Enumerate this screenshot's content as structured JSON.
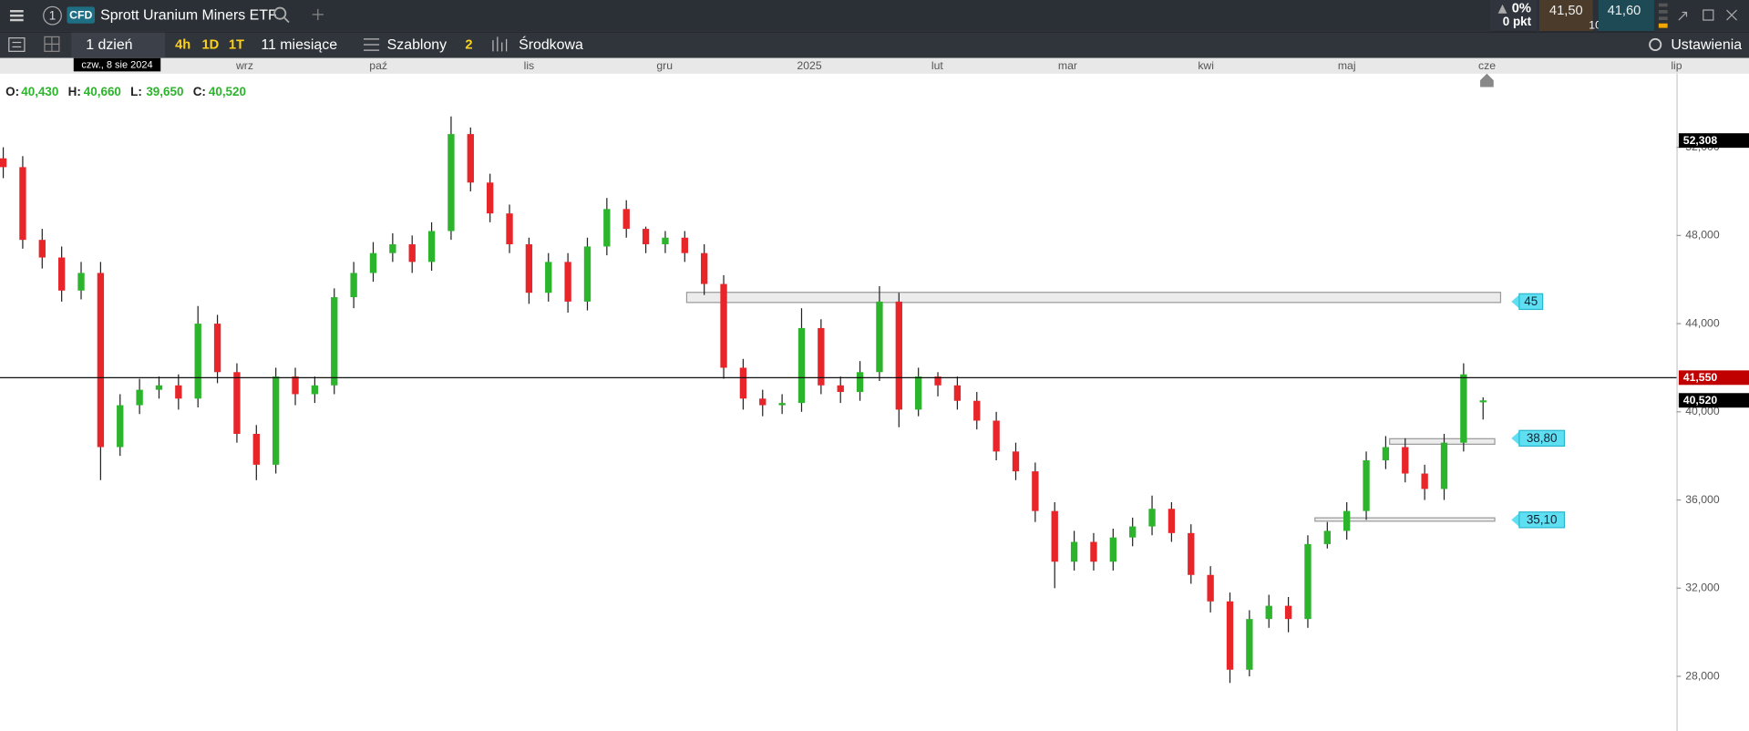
{
  "header": {
    "menu_number": "1",
    "badge": "CFD",
    "instrument": "Sprott Uranium Miners ETF",
    "change_pct": "0%",
    "change_pts": "0 pkt",
    "bid": "41,50",
    "spread": "10",
    "ask": "41,60"
  },
  "toolbar": {
    "interval": "1 dzień",
    "quick_intervals": [
      "4h",
      "1D",
      "1T"
    ],
    "range": "11 miesiące",
    "templates": "Szablony",
    "template_count": "2",
    "price_type": "Środkowa",
    "settings": "Ustawienia"
  },
  "chart_data": {
    "type": "candlestick",
    "crosshair_date": "czw., 8 sie 2024",
    "ohlc_legend": [
      {
        "label": "O:",
        "value": "40,430"
      },
      {
        "label": "H:",
        "value": "40,660"
      },
      {
        "label": "L:",
        "value": "39,650"
      },
      {
        "label": "C:",
        "value": "40,520"
      }
    ],
    "up_color": "#2cb52c",
    "down_color": "#e8262a",
    "xlim": [
      -0.5,
      257.8
    ],
    "ylim": [
      25.52,
      55.29
    ],
    "xticks": [
      {
        "value": 37.2,
        "label": "wrz"
      },
      {
        "value": 57.8,
        "label": "paź"
      },
      {
        "value": 81,
        "label": "lis"
      },
      {
        "value": 101.9,
        "label": "gru"
      },
      {
        "value": 124.2,
        "label": "2025"
      },
      {
        "value": 143.9,
        "label": "lut"
      },
      {
        "value": 164,
        "label": "mar"
      },
      {
        "value": 185.3,
        "label": "kwi"
      },
      {
        "value": 207,
        "label": "maj"
      },
      {
        "value": 228.6,
        "label": "cze"
      },
      {
        "value": 257.8,
        "label": "lip"
      }
    ],
    "yticks": [
      {
        "value": 28,
        "label": "28,000"
      },
      {
        "value": 32,
        "label": "32,000"
      },
      {
        "value": 36,
        "label": "36,000"
      },
      {
        "value": 40,
        "label": "40,000"
      },
      {
        "value": 44,
        "label": "44,000"
      },
      {
        "value": 48,
        "label": "48,000"
      },
      {
        "value": 52,
        "label": "52,000"
      }
    ],
    "x": [
      0,
      3,
      6,
      9,
      12,
      15,
      18,
      21,
      24,
      27,
      30,
      33,
      36,
      39,
      42,
      45,
      48,
      51,
      54,
      57,
      60,
      63,
      66,
      69,
      72,
      75,
      78,
      81,
      84,
      87,
      90,
      93,
      96,
      99,
      102,
      105,
      108,
      111,
      114,
      117,
      120,
      123,
      126,
      129,
      132,
      135,
      138,
      141,
      144,
      147,
      150,
      153,
      156,
      159,
      162,
      165,
      168,
      171,
      174,
      177,
      180,
      183,
      186,
      189,
      192,
      195,
      198,
      201,
      204,
      207,
      210,
      213,
      216,
      219,
      222,
      225,
      228
    ],
    "open": [
      51.5,
      51.1,
      47.8,
      47.0,
      45.5,
      46.3,
      38.4,
      40.3,
      41.0,
      41.2,
      40.6,
      44.0,
      41.8,
      39.0,
      37.6,
      41.6,
      40.8,
      41.2,
      45.2,
      46.3,
      47.2,
      47.6,
      46.8,
      48.2,
      52.6,
      50.4,
      49.0,
      47.6,
      45.4,
      46.8,
      45.0,
      47.5,
      49.2,
      48.3,
      47.6,
      47.9,
      47.2,
      45.8,
      42.0,
      40.6,
      40.3,
      40.4,
      43.8,
      41.2,
      40.9,
      41.8,
      45.0,
      40.1,
      41.6,
      41.2,
      40.5,
      39.6,
      38.2,
      37.3,
      35.5,
      33.2,
      34.1,
      33.2,
      34.3,
      34.8,
      35.6,
      34.5,
      32.6,
      31.4,
      28.3,
      30.6,
      31.2,
      30.6,
      34.0,
      34.6,
      35.5,
      37.8,
      38.4,
      37.2,
      36.5,
      38.6,
      40.43
    ],
    "high": [
      52.0,
      51.6,
      48.3,
      47.5,
      46.8,
      46.8,
      40.8,
      41.5,
      41.6,
      41.7,
      44.8,
      44.4,
      42.2,
      39.4,
      42.0,
      42.0,
      41.6,
      45.6,
      46.8,
      47.7,
      48.1,
      48.0,
      48.6,
      53.4,
      52.9,
      50.8,
      49.4,
      47.9,
      47.2,
      47.2,
      47.9,
      49.7,
      49.6,
      48.4,
      48.2,
      48.2,
      47.6,
      46.2,
      42.4,
      41.0,
      40.8,
      44.7,
      44.2,
      41.6,
      42.3,
      45.7,
      45.4,
      42.0,
      41.8,
      41.6,
      40.9,
      40.0,
      38.6,
      37.7,
      35.9,
      34.6,
      34.5,
      34.7,
      35.2,
      36.2,
      35.9,
      34.9,
      33.0,
      31.8,
      31.0,
      31.7,
      31.6,
      34.4,
      35.0,
      35.9,
      38.2,
      38.9,
      38.8,
      37.6,
      39.0,
      42.2,
      40.66
    ],
    "low": [
      50.6,
      47.4,
      46.5,
      45.0,
      45.1,
      36.9,
      38.0,
      39.9,
      40.6,
      40.1,
      40.2,
      41.3,
      38.6,
      36.9,
      37.2,
      40.3,
      40.4,
      40.8,
      44.7,
      45.9,
      46.8,
      46.3,
      46.4,
      47.8,
      50.0,
      48.6,
      47.2,
      44.9,
      45.0,
      44.5,
      44.6,
      47.1,
      47.9,
      47.2,
      47.2,
      46.8,
      45.3,
      41.5,
      40.1,
      39.8,
      39.9,
      40.0,
      40.8,
      40.4,
      40.5,
      41.4,
      39.3,
      39.8,
      40.7,
      40.1,
      39.2,
      37.8,
      36.9,
      35.0,
      32.0,
      32.8,
      32.8,
      32.8,
      33.9,
      34.4,
      34.1,
      32.2,
      30.9,
      27.7,
      28.0,
      30.2,
      30.0,
      30.2,
      33.8,
      34.2,
      35.1,
      37.4,
      36.8,
      36.0,
      36.0,
      38.2,
      39.65
    ],
    "close": [
      51.1,
      47.8,
      47.0,
      45.5,
      46.3,
      38.4,
      40.3,
      41.0,
      41.2,
      40.6,
      44.0,
      41.8,
      39.0,
      37.6,
      41.6,
      40.8,
      41.2,
      45.2,
      46.3,
      47.2,
      47.6,
      46.8,
      48.2,
      52.6,
      50.4,
      49.0,
      47.6,
      45.4,
      46.8,
      45.0,
      47.5,
      49.2,
      48.3,
      47.6,
      47.9,
      47.2,
      45.8,
      42.0,
      40.6,
      40.3,
      40.4,
      43.8,
      41.2,
      40.9,
      41.8,
      45.0,
      40.1,
      41.6,
      41.2,
      40.5,
      39.6,
      38.2,
      37.3,
      35.5,
      33.2,
      34.1,
      33.2,
      34.3,
      34.8,
      35.6,
      34.5,
      32.6,
      31.4,
      28.3,
      30.6,
      31.2,
      30.6,
      34.0,
      34.6,
      35.5,
      37.8,
      38.4,
      37.2,
      36.5,
      38.6,
      41.7,
      40.52
    ],
    "zones": [
      {
        "label": "45",
        "value": 45,
        "low": 44.96,
        "high": 45.42,
        "x0": 105.3,
        "x1": 230.7
      },
      {
        "label": "38,80",
        "value": 38.8,
        "low": 38.53,
        "high": 38.78,
        "x0": 213.6,
        "x1": 229.8
      },
      {
        "label": "35,10",
        "value": 35.1,
        "low": 35.04,
        "high": 35.19,
        "x0": 202.1,
        "x1": 229.8
      }
    ],
    "zone_label_color": "#5fe0f2",
    "price_markers": [
      {
        "value": 52.308,
        "label": "52,308",
        "color": "#000000"
      },
      {
        "value": 41.55,
        "label": "41,550",
        "color": "#c00000",
        "line": true
      },
      {
        "value": 40.52,
        "label": "40,520",
        "color": "#000000"
      }
    ]
  }
}
